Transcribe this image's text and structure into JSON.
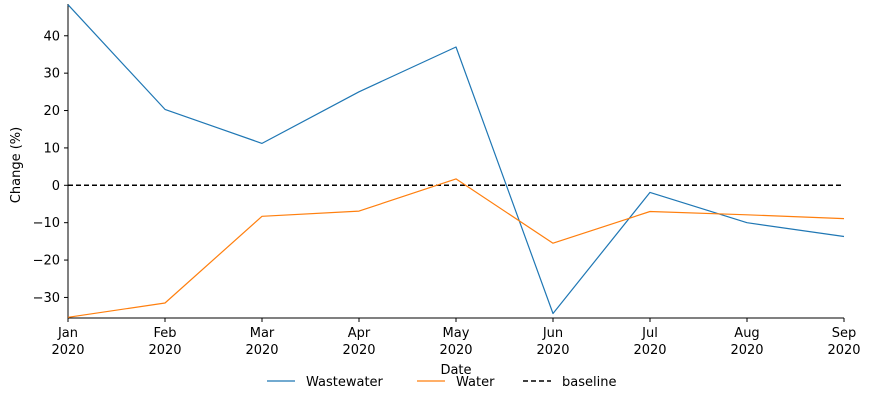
{
  "chart_data": {
    "type": "line",
    "xlabel": "Date",
    "ylabel": "Change (%)",
    "x": [
      "2020-01",
      "2020-02",
      "2020-03",
      "2020-04",
      "2020-05",
      "2020-06",
      "2020-07",
      "2020-08",
      "2020-09"
    ],
    "x_tick_labels": [
      [
        "Jan",
        "2020"
      ],
      [
        "Feb",
        "2020"
      ],
      [
        "Mar",
        "2020"
      ],
      [
        "Apr",
        "2020"
      ],
      [
        "May",
        "2020"
      ],
      [
        "Jun",
        "2020"
      ],
      [
        "Jul",
        "2020"
      ],
      [
        "Aug",
        "2020"
      ],
      [
        "Sep",
        "2020"
      ]
    ],
    "y_ticks": [
      -30,
      -20,
      -10,
      0,
      10,
      20,
      30,
      40
    ],
    "y_tick_labels": [
      "−30",
      "−20",
      "−10",
      "0",
      "10",
      "20",
      "30",
      "40"
    ],
    "ylim": [
      -35.5,
      48.5
    ],
    "grid": false,
    "legend_position": "bottom-center",
    "series": [
      {
        "name": "Wastewater",
        "color": "#1f77b4",
        "style": "solid",
        "values": [
          48.3,
          20.3,
          11.2,
          25.0,
          37.0,
          -34.3,
          -1.9,
          -10.0,
          -13.7
        ]
      },
      {
        "name": "Water",
        "color": "#ff7f0e",
        "style": "solid",
        "values": [
          -35.3,
          -31.5,
          -8.3,
          -6.9,
          1.7,
          -15.5,
          -7.0,
          -7.9,
          -8.9
        ]
      }
    ],
    "reference_lines": [
      {
        "name": "baseline",
        "y": 0,
        "color": "#000000",
        "style": "dashed"
      }
    ]
  }
}
